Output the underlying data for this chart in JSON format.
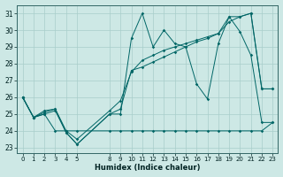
{
  "xlabel": "Humidex (Indice chaleur)",
  "xlim": [
    -0.5,
    23.5
  ],
  "ylim": [
    22.7,
    31.5
  ],
  "yticks": [
    23,
    24,
    25,
    26,
    27,
    28,
    29,
    30,
    31
  ],
  "xticks": [
    0,
    1,
    2,
    3,
    4,
    5,
    8,
    9,
    10,
    11,
    12,
    13,
    14,
    15,
    16,
    17,
    18,
    19,
    20,
    21,
    22,
    23
  ],
  "bg_color": "#cde8e5",
  "grid_color": "#a8ceca",
  "line_color": "#006666",
  "line1": {
    "x": [
      0,
      1,
      2,
      3,
      4,
      5,
      8,
      9,
      10,
      11,
      12,
      13,
      14,
      15,
      16,
      17,
      18,
      19,
      20,
      21,
      22,
      23
    ],
    "y": [
      26.0,
      24.8,
      25.2,
      25.3,
      23.9,
      23.2,
      25.0,
      25.0,
      29.5,
      31.0,
      29.0,
      30.0,
      29.2,
      29.0,
      26.8,
      25.9,
      29.2,
      30.8,
      29.9,
      28.5,
      24.5,
      24.5
    ]
  },
  "line2": {
    "x": [
      0,
      1,
      2,
      3,
      4,
      5,
      8,
      9,
      10,
      11,
      12,
      13,
      14,
      15,
      16,
      17,
      18,
      19,
      20,
      21,
      22,
      23
    ],
    "y": [
      26.0,
      24.8,
      25.0,
      24.0,
      24.0,
      24.0,
      24.0,
      24.0,
      24.0,
      24.0,
      24.0,
      24.0,
      24.0,
      24.0,
      24.0,
      24.0,
      24.0,
      24.0,
      24.0,
      24.0,
      24.0,
      24.5
    ]
  },
  "line3": {
    "x": [
      0,
      1,
      2,
      3,
      4,
      5,
      8,
      9,
      10,
      11,
      12,
      13,
      14,
      15,
      16,
      17,
      18,
      19,
      20,
      21,
      22,
      23
    ],
    "y": [
      26.0,
      24.8,
      25.1,
      25.3,
      24.0,
      23.5,
      25.2,
      25.8,
      27.5,
      28.2,
      28.5,
      28.8,
      29.0,
      29.2,
      29.4,
      29.6,
      29.8,
      30.8,
      30.8,
      31.0,
      26.5,
      26.5
    ]
  },
  "line4": {
    "x": [
      0,
      1,
      2,
      3,
      4,
      5,
      8,
      9,
      10,
      11,
      12,
      13,
      14,
      15,
      16,
      17,
      18,
      19,
      20,
      21,
      22,
      23
    ],
    "y": [
      26.0,
      24.8,
      25.0,
      25.2,
      23.9,
      23.2,
      25.0,
      25.3,
      27.6,
      27.8,
      28.1,
      28.4,
      28.7,
      29.0,
      29.3,
      29.5,
      29.8,
      30.5,
      30.8,
      31.0,
      26.5,
      26.5
    ]
  }
}
